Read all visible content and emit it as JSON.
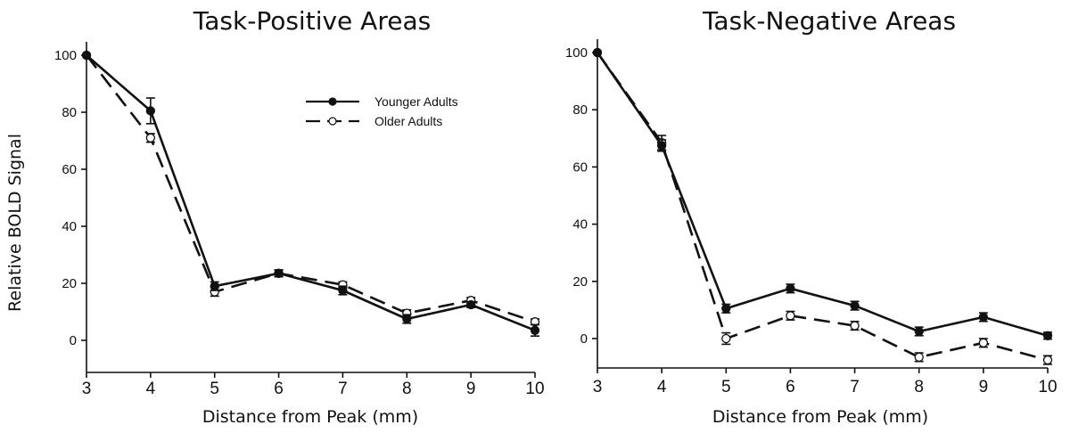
{
  "chart_data": [
    {
      "type": "line",
      "title": "Task-Positive Areas",
      "xlabel": "Distance from Peak (mm)",
      "ylabel": "Relative BOLD Signal",
      "x": [
        3,
        4,
        5,
        6,
        7,
        8,
        9,
        10
      ],
      "x_tick_labels": [
        "3",
        "4",
        "5",
        "6",
        "7",
        "8",
        "9",
        "10"
      ],
      "y_tick_labels": [
        "0",
        "20",
        "40",
        "60",
        "80",
        "100"
      ],
      "xlim": [
        3,
        10
      ],
      "ylim": [
        -11,
        104
      ],
      "legend": [
        "Younger Adults",
        "Older Adults"
      ],
      "series": [
        {
          "name": "Younger Adults",
          "marker": "filled",
          "style": "solid",
          "values": [
            100,
            80.5,
            19,
            23.5,
            17.5,
            7.5,
            12.5,
            3.5
          ],
          "errors": [
            0,
            4.5,
            1.5,
            1.2,
            1.5,
            1.5,
            1.0,
            2.0
          ]
        },
        {
          "name": "Older Adults",
          "marker": "open",
          "style": "dashed",
          "values": [
            100,
            71,
            17,
            23.5,
            19.5,
            9.5,
            14,
            6.5
          ],
          "errors": [
            0,
            1.5,
            1.5,
            1.2,
            1.0,
            1.2,
            1.0,
            1.0
          ]
        }
      ]
    },
    {
      "type": "line",
      "title": "Task-Negative Areas",
      "xlabel": "Distance from Peak (mm)",
      "ylabel": "",
      "x": [
        3,
        4,
        5,
        6,
        7,
        8,
        9,
        10
      ],
      "x_tick_labels": [
        "3",
        "4",
        "5",
        "6",
        "7",
        "8",
        "9",
        "10"
      ],
      "y_tick_labels": [
        "0",
        "20",
        "40",
        "60",
        "80",
        "100"
      ],
      "xlim": [
        3,
        10
      ],
      "ylim": [
        -10,
        103
      ],
      "series": [
        {
          "name": "Younger Adults",
          "marker": "filled",
          "style": "solid",
          "values": [
            100,
            67.5,
            10.5,
            17.5,
            11.5,
            2.5,
            7.5,
            1.0
          ],
          "errors": [
            0,
            2.0,
            1.5,
            1.5,
            1.5,
            1.5,
            1.5,
            1.2
          ]
        },
        {
          "name": "Older Adults",
          "marker": "open",
          "style": "dashed",
          "values": [
            100,
            68.5,
            0,
            8,
            4.5,
            -6.5,
            -1.5,
            -7.5
          ],
          "errors": [
            0,
            2.5,
            2.0,
            1.5,
            1.5,
            1.5,
            1.5,
            1.5
          ]
        }
      ]
    }
  ]
}
